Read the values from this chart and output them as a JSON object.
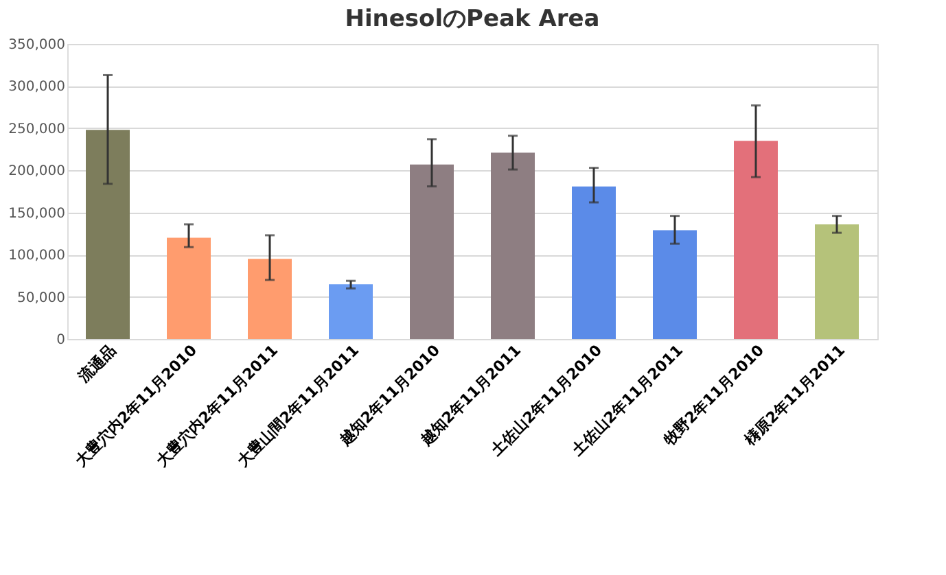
{
  "chart_data": {
    "type": "bar",
    "title": "HinesolのPeak Area",
    "categories": [
      "流通品",
      "大豊穴内2年11月2010",
      "大豊穴内2年11月2011",
      "大豊山間2年11月2011",
      "越知2年11月2010",
      "越知2年11月2011",
      "土佐山2年11月2010",
      "土佐山2年11月2011",
      "牧野2年11月2010",
      "梼原2年11月2011"
    ],
    "values": [
      248000,
      120000,
      95000,
      65000,
      207000,
      221000,
      181000,
      129000,
      235000,
      136000
    ],
    "errors": [
      [
        184000,
        313000
      ],
      [
        109000,
        136000
      ],
      [
        70000,
        123000
      ],
      [
        60000,
        69000
      ],
      [
        181000,
        237000
      ],
      [
        201000,
        241000
      ],
      [
        162000,
        203000
      ],
      [
        113000,
        146000
      ],
      [
        192000,
        277000
      ],
      [
        126000,
        146000
      ]
    ],
    "colors": [
      "#7d7d5c",
      "#ff9c6e",
      "#ff9c6e",
      "#6b9cf2",
      "#8e7e82",
      "#8e7e82",
      "#5b8be8",
      "#5b8be8",
      "#e3707a",
      "#b5c27a"
    ],
    "ylim": [
      0,
      350000
    ],
    "yticks": [
      {
        "value": 0,
        "label": "0"
      },
      {
        "value": 50000,
        "label": "50,000"
      },
      {
        "value": 100000,
        "label": "100,000"
      },
      {
        "value": 150000,
        "label": "150,000"
      },
      {
        "value": 200000,
        "label": "200,000"
      },
      {
        "value": 250000,
        "label": "250,000"
      },
      {
        "value": 300000,
        "label": "300,000"
      },
      {
        "value": 350000,
        "label": "350,000"
      }
    ],
    "grid": "y"
  }
}
